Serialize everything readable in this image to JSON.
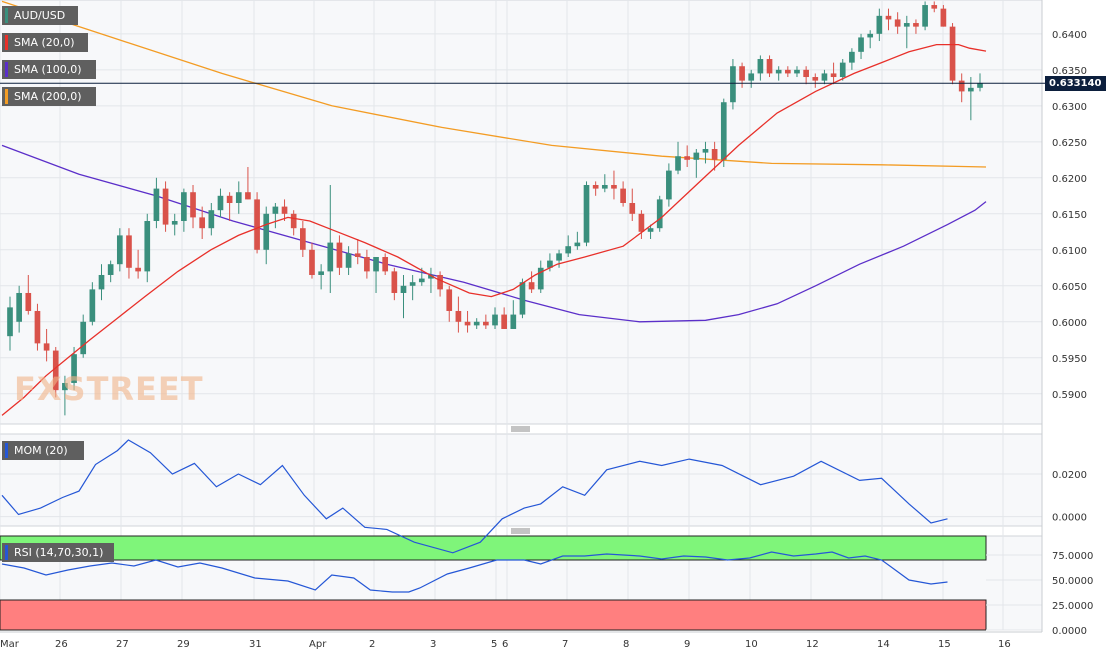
{
  "legends": {
    "pair": "AUD/USD",
    "sma20": "SMA (20,0)",
    "sma100": "SMA (100,0)",
    "sma200": "SMA (200,0)",
    "mom": "MOM (20)",
    "rsi": "RSI (14,70,30,1)"
  },
  "colors": {
    "up": "#3a8f7d",
    "down": "#d9524a",
    "sma20": "#e8302a",
    "sma100": "#5b2fc9",
    "sma200": "#f39c24",
    "mom": "#2557d6",
    "rsi": "#2557d6",
    "overbought": "#7ff57a",
    "oversold": "#ff7f7f"
  },
  "current_price": "0.633140",
  "watermark": "FXSTREET",
  "chart_data": {
    "type": "candlestick",
    "price_axis": {
      "ticks": [
        "0.6400",
        "0.6350",
        "0.6300",
        "0.6250",
        "0.6200",
        "0.6150",
        "0.6100",
        "0.6050",
        "0.6000",
        "0.5950",
        "0.5900"
      ],
      "range": [
        0.5858,
        0.6447
      ]
    },
    "mom_axis": {
      "ticks": [
        "0.0200",
        "0.0000"
      ],
      "range": [
        -0.0044,
        0.0388
      ]
    },
    "rsi_axis": {
      "ticks": [
        "75.0000",
        "50.0000",
        "25.0000",
        "0.0000"
      ],
      "range": [
        0,
        94
      ],
      "overbought": 70,
      "oversold": 30
    },
    "x_labels": [
      "Mar",
      "26",
      "27",
      "29",
      "31",
      "Apr",
      "2",
      "3",
      "5",
      "6",
      "7",
      "8",
      "9",
      "10",
      "12",
      "14",
      "15",
      "16"
    ],
    "candles": [
      [
        0.598,
        0.6035,
        0.596,
        0.602
      ],
      [
        0.6,
        0.605,
        0.5985,
        0.604
      ],
      [
        0.604,
        0.6065,
        0.601,
        0.6015
      ],
      [
        0.6015,
        0.6025,
        0.596,
        0.597
      ],
      [
        0.597,
        0.599,
        0.5945,
        0.596
      ],
      [
        0.596,
        0.5965,
        0.5895,
        0.5905
      ],
      [
        0.5905,
        0.5925,
        0.587,
        0.5915
      ],
      [
        0.5915,
        0.5965,
        0.5905,
        0.5955
      ],
      [
        0.5955,
        0.601,
        0.595,
        0.6
      ],
      [
        0.6,
        0.6055,
        0.5995,
        0.6045
      ],
      [
        0.6045,
        0.608,
        0.603,
        0.6065
      ],
      [
        0.6065,
        0.6085,
        0.6055,
        0.608
      ],
      [
        0.608,
        0.613,
        0.607,
        0.612
      ],
      [
        0.612,
        0.613,
        0.606,
        0.6075
      ],
      [
        0.6075,
        0.61,
        0.606,
        0.607
      ],
      [
        0.607,
        0.615,
        0.6055,
        0.614
      ],
      [
        0.614,
        0.62,
        0.613,
        0.6185
      ],
      [
        0.6185,
        0.6195,
        0.6125,
        0.6135
      ],
      [
        0.6135,
        0.615,
        0.612,
        0.614
      ],
      [
        0.614,
        0.6185,
        0.6125,
        0.618
      ],
      [
        0.618,
        0.619,
        0.613,
        0.6145
      ],
      [
        0.6145,
        0.616,
        0.6115,
        0.613
      ],
      [
        0.613,
        0.6165,
        0.612,
        0.6155
      ],
      [
        0.6155,
        0.6185,
        0.6145,
        0.6175
      ],
      [
        0.6175,
        0.618,
        0.614,
        0.6165
      ],
      [
        0.6165,
        0.6195,
        0.615,
        0.618
      ],
      [
        0.618,
        0.6215,
        0.617,
        0.617
      ],
      [
        0.617,
        0.618,
        0.6095,
        0.61
      ],
      [
        0.61,
        0.616,
        0.608,
        0.615
      ],
      [
        0.615,
        0.6165,
        0.613,
        0.616
      ],
      [
        0.616,
        0.617,
        0.614,
        0.615
      ],
      [
        0.615,
        0.6155,
        0.612,
        0.613
      ],
      [
        0.613,
        0.614,
        0.609,
        0.61
      ],
      [
        0.61,
        0.611,
        0.606,
        0.6065
      ],
      [
        0.6065,
        0.608,
        0.6045,
        0.607
      ],
      [
        0.607,
        0.619,
        0.604,
        0.611
      ],
      [
        0.611,
        0.612,
        0.6065,
        0.6075
      ],
      [
        0.6075,
        0.6105,
        0.6065,
        0.6095
      ],
      [
        0.6095,
        0.6115,
        0.608,
        0.609
      ],
      [
        0.609,
        0.61,
        0.606,
        0.607
      ],
      [
        0.607,
        0.6085,
        0.604,
        0.609
      ],
      [
        0.609,
        0.6095,
        0.6065,
        0.607
      ],
      [
        0.607,
        0.6075,
        0.603,
        0.604
      ],
      [
        0.604,
        0.6065,
        0.6005,
        0.605
      ],
      [
        0.605,
        0.6065,
        0.603,
        0.6055
      ],
      [
        0.6055,
        0.6075,
        0.605,
        0.606
      ],
      [
        0.606,
        0.6075,
        0.604,
        0.6065
      ],
      [
        0.6065,
        0.607,
        0.6035,
        0.6045
      ],
      [
        0.6045,
        0.605,
        0.6,
        0.6015
      ],
      [
        0.6015,
        0.6035,
        0.5985,
        0.6
      ],
      [
        0.6,
        0.6015,
        0.5985,
        0.5995
      ],
      [
        0.5995,
        0.6005,
        0.599,
        0.6
      ],
      [
        0.6,
        0.601,
        0.599,
        0.5995
      ],
      [
        0.5995,
        0.602,
        0.599,
        0.601
      ],
      [
        0.601,
        0.602,
        0.599,
        0.599
      ],
      [
        0.599,
        0.603,
        0.599,
        0.601
      ],
      [
        0.601,
        0.606,
        0.6005,
        0.6055
      ],
      [
        0.6055,
        0.607,
        0.604,
        0.6045
      ],
      [
        0.6045,
        0.6085,
        0.604,
        0.6075
      ],
      [
        0.6075,
        0.6095,
        0.607,
        0.6085
      ],
      [
        0.6085,
        0.61,
        0.6075,
        0.6095
      ],
      [
        0.6095,
        0.612,
        0.609,
        0.6105
      ],
      [
        0.6105,
        0.6125,
        0.61,
        0.611
      ],
      [
        0.611,
        0.6195,
        0.6105,
        0.619
      ],
      [
        0.619,
        0.6195,
        0.6175,
        0.6185
      ],
      [
        0.6185,
        0.6205,
        0.618,
        0.619
      ],
      [
        0.619,
        0.621,
        0.617,
        0.6185
      ],
      [
        0.6185,
        0.6195,
        0.616,
        0.6165
      ],
      [
        0.6165,
        0.6185,
        0.614,
        0.615
      ],
      [
        0.615,
        0.6155,
        0.6115,
        0.6125
      ],
      [
        0.6125,
        0.6135,
        0.6115,
        0.613
      ],
      [
        0.613,
        0.6175,
        0.6125,
        0.617
      ],
      [
        0.617,
        0.622,
        0.616,
        0.621
      ],
      [
        0.621,
        0.625,
        0.6205,
        0.623
      ],
      [
        0.623,
        0.6245,
        0.6215,
        0.6225
      ],
      [
        0.6225,
        0.624,
        0.62,
        0.6235
      ],
      [
        0.6235,
        0.625,
        0.622,
        0.624
      ],
      [
        0.624,
        0.625,
        0.621,
        0.6225
      ],
      [
        0.6225,
        0.631,
        0.6215,
        0.6305
      ],
      [
        0.6305,
        0.6365,
        0.6295,
        0.6355
      ],
      [
        0.6355,
        0.636,
        0.6325,
        0.6335
      ],
      [
        0.6335,
        0.635,
        0.6325,
        0.6345
      ],
      [
        0.6345,
        0.637,
        0.6335,
        0.6365
      ],
      [
        0.6365,
        0.637,
        0.634,
        0.6345
      ],
      [
        0.6345,
        0.6355,
        0.6335,
        0.635
      ],
      [
        0.635,
        0.6355,
        0.634,
        0.6345
      ],
      [
        0.6345,
        0.6355,
        0.634,
        0.635
      ],
      [
        0.635,
        0.6355,
        0.633,
        0.634
      ],
      [
        0.634,
        0.6345,
        0.6325,
        0.6335
      ],
      [
        0.6335,
        0.635,
        0.633,
        0.6345
      ],
      [
        0.6345,
        0.636,
        0.633,
        0.634
      ],
      [
        0.634,
        0.6365,
        0.6335,
        0.636
      ],
      [
        0.636,
        0.638,
        0.635,
        0.6375
      ],
      [
        0.6375,
        0.64,
        0.6365,
        0.6395
      ],
      [
        0.6395,
        0.6405,
        0.638,
        0.64
      ],
      [
        0.64,
        0.6435,
        0.639,
        0.6425
      ],
      [
        0.6425,
        0.6435,
        0.6405,
        0.642
      ],
      [
        0.642,
        0.643,
        0.64,
        0.641
      ],
      [
        0.641,
        0.6425,
        0.638,
        0.6415
      ],
      [
        0.6415,
        0.642,
        0.64,
        0.641
      ],
      [
        0.641,
        0.6445,
        0.6405,
        0.644
      ],
      [
        0.644,
        0.6445,
        0.643,
        0.6435
      ],
      [
        0.6435,
        0.644,
        0.641,
        0.641
      ],
      [
        0.641,
        0.6415,
        0.633,
        0.6335
      ],
      [
        0.6335,
        0.6345,
        0.6305,
        0.632
      ],
      [
        0.632,
        0.634,
        0.628,
        0.6325
      ],
      [
        0.6325,
        0.6345,
        0.632,
        0.6331
      ]
    ],
    "sma20": [
      [
        0.587,
        0
      ],
      [
        0.5895,
        8
      ],
      [
        0.5925,
        16
      ],
      [
        0.595,
        24
      ],
      [
        0.5975,
        32
      ],
      [
        0.6005,
        42
      ],
      [
        0.6035,
        52
      ],
      [
        0.607,
        64
      ],
      [
        0.61,
        76
      ],
      [
        0.612,
        86
      ],
      [
        0.6135,
        96
      ],
      [
        0.6145,
        104
      ],
      [
        0.614,
        112
      ],
      [
        0.6125,
        122
      ],
      [
        0.611,
        132
      ],
      [
        0.609,
        144
      ],
      [
        0.606,
        158
      ],
      [
        0.604,
        170
      ],
      [
        0.6035,
        178
      ],
      [
        0.6045,
        186
      ],
      [
        0.6065,
        194
      ],
      [
        0.608,
        202
      ],
      [
        0.609,
        212
      ],
      [
        0.6105,
        226
      ],
      [
        0.6145,
        240
      ],
      [
        0.6195,
        254
      ],
      [
        0.6245,
        268
      ],
      [
        0.629,
        282
      ],
      [
        0.632,
        296
      ],
      [
        0.6345,
        310
      ],
      [
        0.636,
        320
      ],
      [
        0.6375,
        330
      ],
      [
        0.6385,
        340
      ],
      [
        0.6385,
        348
      ],
      [
        0.638,
        352
      ],
      [
        0.6376,
        358
      ]
    ],
    "sma100": [
      [
        0.6245,
        0
      ],
      [
        0.6205,
        28
      ],
      [
        0.6175,
        56
      ],
      [
        0.614,
        84
      ],
      [
        0.611,
        112
      ],
      [
        0.608,
        140
      ],
      [
        0.6055,
        168
      ],
      [
        0.603,
        190
      ],
      [
        0.601,
        210
      ],
      [
        0.6,
        232
      ],
      [
        0.6002,
        256
      ],
      [
        0.601,
        268
      ],
      [
        0.6025,
        282
      ],
      [
        0.605,
        296
      ],
      [
        0.608,
        312
      ],
      [
        0.6105,
        328
      ],
      [
        0.6135,
        344
      ],
      [
        0.6155,
        354
      ],
      [
        0.6167,
        358
      ]
    ],
    "sma200": [
      [
        0.6445,
        0
      ],
      [
        0.6395,
        40
      ],
      [
        0.6345,
        80
      ],
      [
        0.63,
        120
      ],
      [
        0.627,
        160
      ],
      [
        0.6245,
        200
      ],
      [
        0.623,
        240
      ],
      [
        0.622,
        280
      ],
      [
        0.6218,
        320
      ],
      [
        0.6215,
        358
      ]
    ],
    "mom": [
      [
        0.01,
        0
      ],
      [
        0.001,
        6
      ],
      [
        0.004,
        14
      ],
      [
        0.009,
        22
      ],
      [
        0.012,
        28
      ],
      [
        0.0245,
        34
      ],
      [
        0.031,
        42
      ],
      [
        0.036,
        46
      ],
      [
        0.03,
        54
      ],
      [
        0.02,
        62
      ],
      [
        0.025,
        70
      ],
      [
        0.014,
        78
      ],
      [
        0.02,
        86
      ],
      [
        0.015,
        94
      ],
      [
        0.024,
        102
      ],
      [
        0.01,
        110
      ],
      [
        -0.001,
        118
      ],
      [
        0.004,
        124
      ],
      [
        -0.005,
        132
      ],
      [
        -0.006,
        140
      ],
      [
        -0.012,
        150
      ],
      [
        -0.017,
        164
      ],
      [
        -0.012,
        174
      ],
      [
        -0.001,
        182
      ],
      [
        0.004,
        190
      ],
      [
        0.006,
        196
      ],
      [
        0.014,
        204
      ],
      [
        0.01,
        212
      ],
      [
        0.022,
        220
      ],
      [
        0.026,
        232
      ],
      [
        0.024,
        240
      ],
      [
        0.027,
        250
      ],
      [
        0.024,
        262
      ],
      [
        0.015,
        276
      ],
      [
        0.019,
        288
      ],
      [
        0.026,
        298
      ],
      [
        0.017,
        312
      ],
      [
        0.018,
        320
      ],
      [
        0.006,
        330
      ],
      [
        -0.003,
        338
      ],
      [
        -0.001,
        344
      ]
    ],
    "rsi": [
      [
        66,
        0
      ],
      [
        62,
        8
      ],
      [
        55,
        16
      ],
      [
        60,
        24
      ],
      [
        64,
        32
      ],
      [
        67,
        40
      ],
      [
        64,
        48
      ],
      [
        70,
        56
      ],
      [
        63,
        64
      ],
      [
        67,
        72
      ],
      [
        62,
        80
      ],
      [
        52,
        92
      ],
      [
        49,
        104
      ],
      [
        40,
        114
      ],
      [
        55,
        120
      ],
      [
        52,
        128
      ],
      [
        40,
        134
      ],
      [
        38,
        142
      ],
      [
        38,
        148
      ],
      [
        42,
        152
      ],
      [
        56,
        162
      ],
      [
        62,
        170
      ],
      [
        70,
        180
      ],
      [
        70,
        190
      ],
      [
        66,
        196
      ],
      [
        74,
        204
      ],
      [
        74,
        212
      ],
      [
        76,
        220
      ],
      [
        74,
        232
      ],
      [
        71,
        240
      ],
      [
        74,
        248
      ],
      [
        73,
        256
      ],
      [
        70,
        264
      ],
      [
        72,
        272
      ],
      [
        78,
        280
      ],
      [
        74,
        288
      ],
      [
        76,
        296
      ],
      [
        78,
        302
      ],
      [
        72,
        308
      ],
      [
        74,
        314
      ],
      [
        70,
        320
      ],
      [
        50,
        330
      ],
      [
        46,
        338
      ],
      [
        48,
        344
      ]
    ]
  }
}
